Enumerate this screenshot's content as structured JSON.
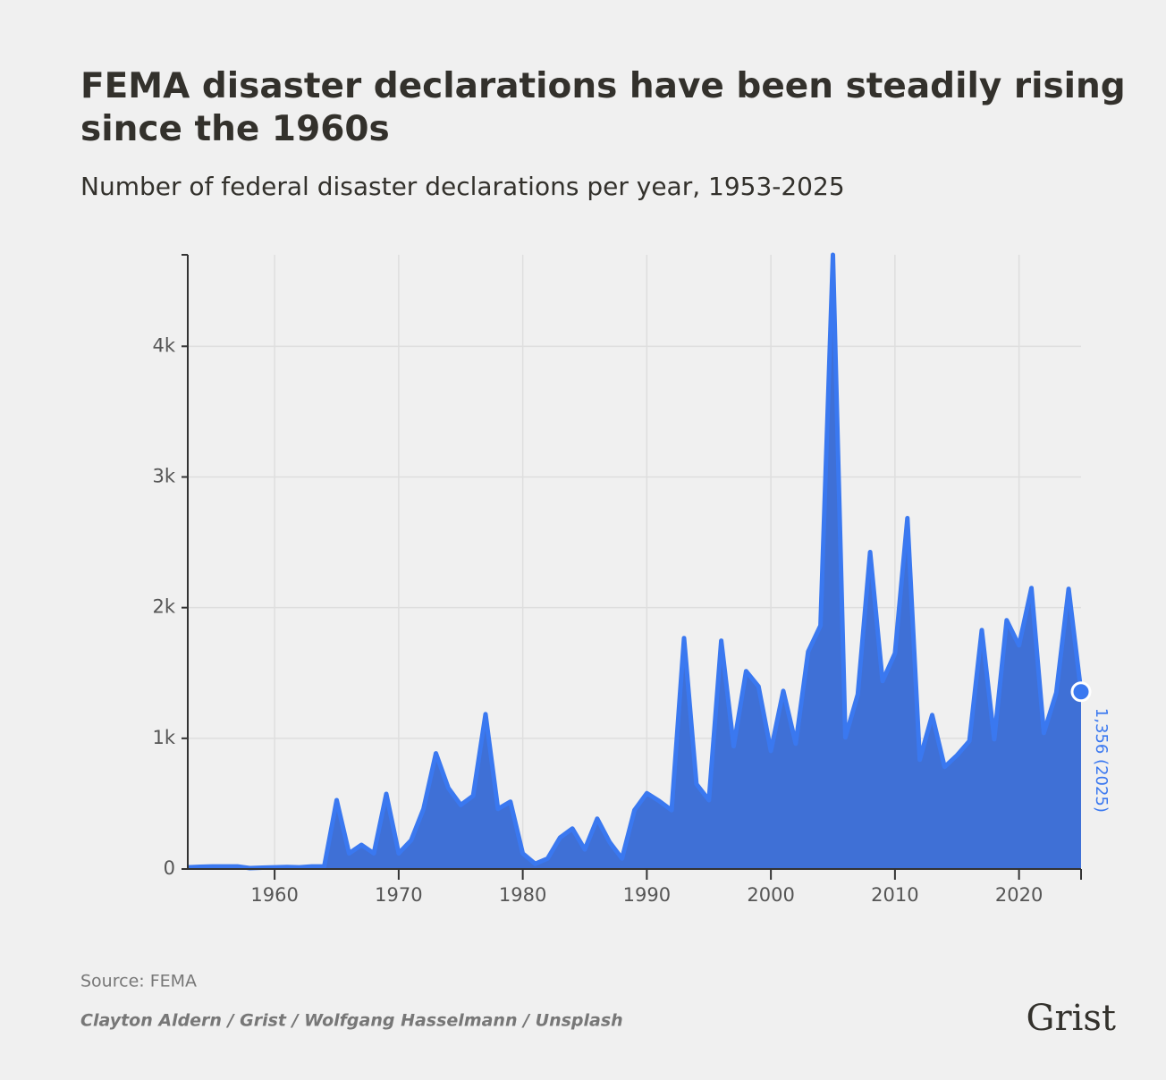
{
  "chart_data": {
    "type": "area",
    "title": "FEMA disaster declarations have been steadily rising since the 1960s",
    "subtitle": "Number of federal disaster declarations per year, 1953-2025",
    "x": [
      1953,
      1954,
      1955,
      1956,
      1957,
      1958,
      1959,
      1960,
      1961,
      1962,
      1963,
      1964,
      1965,
      1966,
      1967,
      1968,
      1969,
      1970,
      1971,
      1972,
      1973,
      1974,
      1975,
      1976,
      1977,
      1978,
      1979,
      1980,
      1981,
      1982,
      1983,
      1984,
      1985,
      1986,
      1987,
      1988,
      1989,
      1990,
      1991,
      1992,
      1993,
      1994,
      1995,
      1996,
      1997,
      1998,
      1999,
      2000,
      2001,
      2002,
      2003,
      2004,
      2005,
      2006,
      2007,
      2008,
      2009,
      2010,
      2011,
      2012,
      2013,
      2014,
      2015,
      2016,
      2017,
      2018,
      2019,
      2020,
      2021,
      2022,
      2023,
      2024,
      2025
    ],
    "series": [
      {
        "name": "Disaster declarations",
        "color": "#3a78f0",
        "values": [
          13,
          17,
          20,
          20,
          20,
          7,
          10,
          13,
          15,
          13,
          20,
          20,
          527,
          120,
          185,
          120,
          575,
          120,
          220,
          460,
          885,
          620,
          490,
          560,
          1185,
          460,
          515,
          120,
          40,
          80,
          240,
          310,
          150,
          385,
          205,
          80,
          450,
          580,
          520,
          450,
          1767,
          650,
          527,
          1747,
          940,
          1514,
          1397,
          904,
          1363,
          959,
          1664,
          1863,
          4700,
          1007,
          1336,
          2425,
          1438,
          1651,
          2685,
          836,
          1178,
          781,
          870,
          979,
          1829,
          993,
          1904,
          1712,
          2150,
          1041,
          1349,
          2144,
          1356
        ]
      }
    ],
    "xlim": [
      1953,
      2025
    ],
    "xticks": [
      1960,
      1970,
      1980,
      1990,
      2000,
      2010,
      2020
    ],
    "ylim": [
      0,
      4700
    ],
    "yticks": [
      0,
      {
        "value": 1000,
        "label": "1k"
      },
      {
        "value": 2000,
        "label": "2k"
      },
      {
        "value": 3000,
        "label": "3k"
      },
      {
        "value": 4000,
        "label": "4k"
      }
    ],
    "grid": true,
    "annotation": {
      "text": "1,356 (2025)",
      "x": 2025,
      "y": 1356
    },
    "source": "Source: FEMA",
    "credit": "Clayton Aldern / Grist / Wolfgang Hasselmann / Unsplash",
    "logo": "Grist"
  }
}
